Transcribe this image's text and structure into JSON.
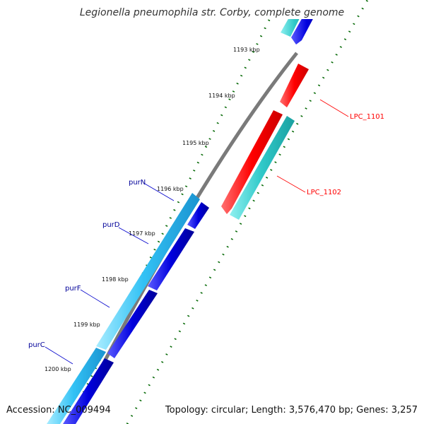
{
  "title": "Legionella pneumophila str. Corby, complete genome",
  "footer": {
    "accession": "Accession: NC_009494",
    "summary": "Topology: circular; Length: 3,576,470 bp; Genes: 3,257"
  },
  "ticks": [
    {
      "label": "1193 kbp",
      "kbp": 1193
    },
    {
      "label": "1194 kbp",
      "kbp": 1194
    },
    {
      "label": "1195 kbp",
      "kbp": 1195
    },
    {
      "label": "1196 kbp",
      "kbp": 1196
    },
    {
      "label": "1197 kbp",
      "kbp": 1197
    },
    {
      "label": "1198 kbp",
      "kbp": 1198
    },
    {
      "label": "1199 kbp",
      "kbp": 1199
    },
    {
      "label": "1200 kbp",
      "kbp": 1200
    }
  ],
  "genes": [
    {
      "name": "LPC_1101",
      "color": "#ff0000"
    },
    {
      "name": "LPC_1102",
      "color": "#ff0000"
    },
    {
      "name": "purN",
      "color": "#000099"
    },
    {
      "name": "purD",
      "color": "#000099"
    },
    {
      "name": "purF",
      "color": "#000099"
    },
    {
      "name": "purC",
      "color": "#000099"
    }
  ],
  "colors": {
    "backbone": "#7a7a7a",
    "cyan_track": "#2fc8c8",
    "light_blue_track": "#33ccff",
    "blue_track": "#0000dd",
    "red_track": "#ff0000",
    "tick_dots": "#006600"
  }
}
